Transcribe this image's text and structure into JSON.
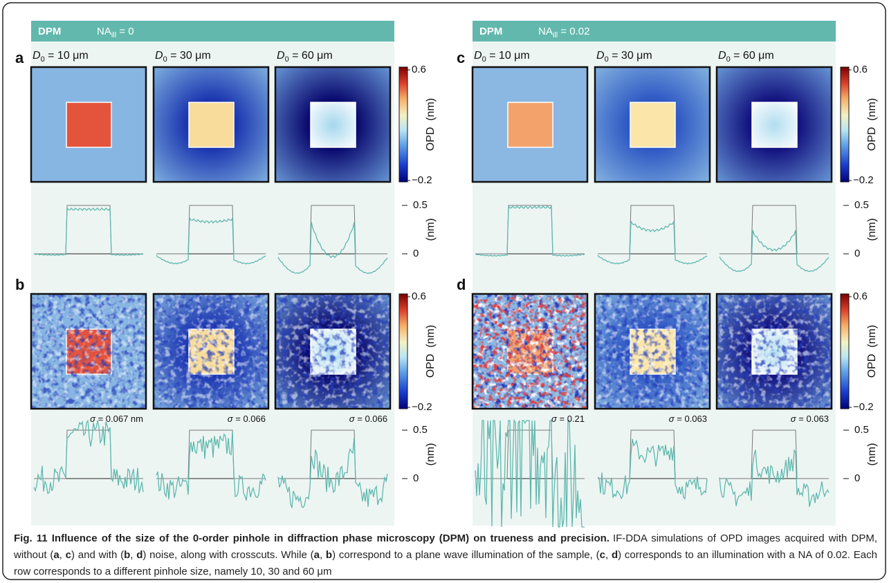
{
  "panels": [
    {
      "header": {
        "label": "DPM",
        "na": {
          "base": "NA",
          "sub": "ill",
          "rest": " = 0"
        }
      },
      "columns": [
        {
          "symbol": "D",
          "sub": "0",
          "rest": " = 10 μm"
        },
        {
          "symbol": "D",
          "sub": "0",
          "rest": " = 30 μm"
        },
        {
          "symbol": "D",
          "sub": "0",
          "rest": " = 60 μm"
        }
      ],
      "rows": [
        {
          "letter": "a",
          "colorbar": {
            "max": "0.6",
            "min": "−0.2",
            "label": "OPD  (nm)"
          },
          "crosscut": {
            "top": "0.5",
            "zero": "0",
            "label": "(nm)"
          }
        },
        {
          "letter": "b",
          "colorbar": {
            "max": "0.6",
            "min": "−0.2",
            "label": "OPD  (nm)"
          },
          "crosscut": {
            "top": "0.5",
            "zero": "0",
            "label": "(nm)",
            "sigmas": [
              {
                "symbol": "σ",
                "rest": " = 0.067 nm"
              },
              {
                "symbol": "σ",
                "rest": " = 0.066"
              },
              {
                "symbol": "σ",
                "rest": " = 0.066"
              }
            ]
          }
        }
      ]
    },
    {
      "header": {
        "label": "DPM",
        "na": {
          "base": "NA",
          "sub": "ill",
          "rest": " = 0.02"
        }
      },
      "columns": [
        {
          "symbol": "D",
          "sub": "0",
          "rest": " = 10 μm"
        },
        {
          "symbol": "D",
          "sub": "0",
          "rest": " = 30 μm"
        },
        {
          "symbol": "D",
          "sub": "0",
          "rest": " = 60 μm"
        }
      ],
      "rows": [
        {
          "letter": "c",
          "colorbar": {
            "max": "0.6",
            "min": "−0.2",
            "label": "OPD  (nm)"
          },
          "crosscut": {
            "top": "0.5",
            "zero": "0",
            "label": "(nm)"
          }
        },
        {
          "letter": "d",
          "colorbar": {
            "max": "0.6",
            "min": "−0.2",
            "label": "OPD  (nm)"
          },
          "crosscut": {
            "top": "0.5",
            "zero": "0",
            "label": "(nm)",
            "sigmas": [
              {
                "symbol": "σ",
                "rest": " = 0.21"
              },
              {
                "symbol": "σ",
                "rest": " = 0.063"
              },
              {
                "symbol": "σ",
                "rest": " = 0.063"
              }
            ]
          }
        }
      ]
    }
  ],
  "caption": {
    "title": "Fig. 11 Influence of the size of the 0-order pinhole in diffraction phase microscopy (DPM) on trueness and precision.",
    "body": [
      {
        "text": "IF-DDA simulations of OPD images acquired with DPM, without (",
        "bold": false
      },
      {
        "text": "a",
        "bold": true
      },
      {
        "text": ", ",
        "bold": false
      },
      {
        "text": "c",
        "bold": true
      },
      {
        "text": ") and with (",
        "bold": false
      },
      {
        "text": "b",
        "bold": true
      },
      {
        "text": ", ",
        "bold": false
      },
      {
        "text": "d",
        "bold": true
      },
      {
        "text": ") noise, along with crosscuts. While (",
        "bold": false
      },
      {
        "text": "a",
        "bold": true
      },
      {
        "text": ", ",
        "bold": false
      },
      {
        "text": "b",
        "bold": true
      },
      {
        "text": ") correspond to a plane wave illumination of the sample, (",
        "bold": false
      },
      {
        "text": "c",
        "bold": true
      },
      {
        "text": ", ",
        "bold": false
      },
      {
        "text": "d",
        "bold": true
      },
      {
        "text": ") corresponds to an illumination with a NA of 0.02. Each row corresponds to a different pinhole size, namely 10, 30 and 60 μm",
        "bold": false
      }
    ]
  }
}
